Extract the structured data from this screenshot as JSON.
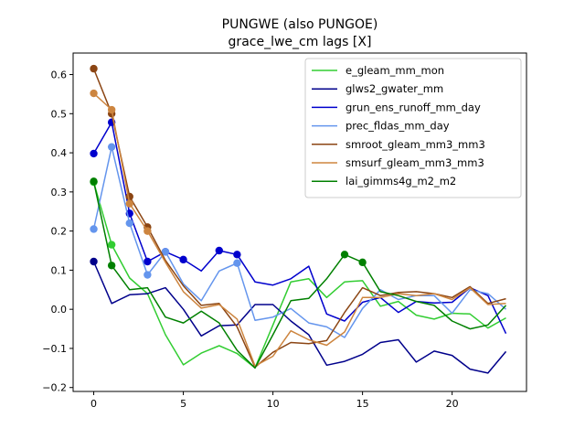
{
  "chart_data": {
    "type": "line",
    "title": "PUNGWE  (also PUNGOE)",
    "subtitle": "grace_lwe_cm lags [X]",
    "xlabel": "",
    "ylabel": "",
    "xlim": [
      -1.15,
      24.15
    ],
    "ylim": [
      -0.21,
      0.655
    ],
    "xticks": [
      0,
      5,
      10,
      15,
      20
    ],
    "yticks": [
      -0.2,
      -0.1,
      0.0,
      0.1,
      0.2,
      0.3,
      0.4,
      0.5,
      0.6
    ],
    "ytick_labels": [
      "−0.2",
      "−0.1",
      "0.0",
      "0.1",
      "0.2",
      "0.3",
      "0.4",
      "0.5",
      "0.6"
    ],
    "grid": false,
    "legend_position": "top-right",
    "x": [
      0,
      1,
      2,
      3,
      4,
      5,
      6,
      7,
      8,
      9,
      10,
      11,
      12,
      13,
      14,
      15,
      16,
      17,
      18,
      19,
      20,
      21,
      22,
      23
    ],
    "series": [
      {
        "name": "e_gleam_mm_mon",
        "color": "#32cd32",
        "values": [
          0.325,
          0.165,
          0.08,
          0.04,
          -0.065,
          -0.142,
          -0.112,
          -0.093,
          -0.113,
          -0.15,
          -0.04,
          0.07,
          0.078,
          0.03,
          0.07,
          0.073,
          0.008,
          0.02,
          -0.015,
          -0.025,
          -0.01,
          -0.012,
          -0.048,
          -0.022
        ],
        "markers": [
          0,
          1
        ]
      },
      {
        "name": "glws2_gwater_mm",
        "color": "#00008b",
        "values": [
          0.122,
          0.015,
          0.037,
          0.04,
          0.055,
          0.0,
          -0.068,
          -0.042,
          -0.04,
          0.012,
          0.012,
          -0.03,
          -0.065,
          -0.143,
          -0.133,
          -0.115,
          -0.085,
          -0.078,
          -0.135,
          -0.107,
          -0.118,
          -0.153,
          -0.163,
          -0.108
        ],
        "markers": [
          0
        ]
      },
      {
        "name": "grun_ens_runoff_mm_day",
        "color": "#0000cd",
        "values": [
          0.398,
          0.478,
          0.245,
          0.122,
          0.147,
          0.127,
          0.098,
          0.15,
          0.14,
          0.07,
          0.062,
          0.078,
          0.11,
          -0.012,
          -0.03,
          0.018,
          0.03,
          -0.008,
          0.02,
          0.016,
          0.018,
          0.055,
          0.035,
          -0.062
        ],
        "markers": [
          0,
          1,
          2,
          3,
          4,
          5,
          7,
          8
        ]
      },
      {
        "name": "prec_fldas_mm_day",
        "color": "#6495ed",
        "values": [
          0.205,
          0.415,
          0.22,
          0.088,
          0.147,
          0.065,
          0.022,
          0.098,
          0.118,
          -0.028,
          -0.02,
          0.002,
          -0.035,
          -0.045,
          -0.072,
          0.002,
          0.05,
          0.025,
          0.035,
          0.035,
          -0.01,
          0.05,
          0.04,
          0.0
        ],
        "markers": [
          0,
          1,
          2,
          3,
          4,
          8
        ]
      },
      {
        "name": "smroot_gleam_mm3_mm3",
        "color": "#8b4513",
        "values": [
          0.615,
          0.5,
          0.288,
          0.21,
          0.125,
          0.06,
          0.01,
          0.015,
          -0.045,
          -0.148,
          -0.11,
          -0.085,
          -0.088,
          -0.08,
          -0.008,
          0.055,
          0.035,
          0.043,
          0.045,
          0.04,
          0.03,
          0.058,
          0.015,
          0.027
        ],
        "markers": [
          0,
          1,
          2,
          3
        ]
      },
      {
        "name": "smsurf_gleam_mm3_mm3",
        "color": "#cd853f",
        "values": [
          0.552,
          0.51,
          0.27,
          0.2,
          0.12,
          0.045,
          0.003,
          0.012,
          -0.025,
          -0.145,
          -0.12,
          -0.055,
          -0.078,
          -0.092,
          -0.058,
          0.03,
          0.03,
          0.04,
          0.035,
          0.04,
          0.025,
          0.055,
          0.012,
          0.015
        ],
        "markers": [
          0,
          1,
          2,
          3
        ]
      },
      {
        "name": "lai_gimms4g_m2_m2",
        "color": "#008000",
        "values": [
          0.327,
          0.112,
          0.05,
          0.055,
          -0.02,
          -0.035,
          -0.005,
          -0.035,
          -0.105,
          -0.15,
          -0.065,
          0.022,
          0.028,
          0.078,
          0.14,
          0.12,
          0.045,
          0.035,
          0.02,
          0.01,
          -0.03,
          -0.05,
          -0.04,
          0.01
        ],
        "markers": [
          0,
          1,
          14,
          15
        ]
      }
    ]
  }
}
